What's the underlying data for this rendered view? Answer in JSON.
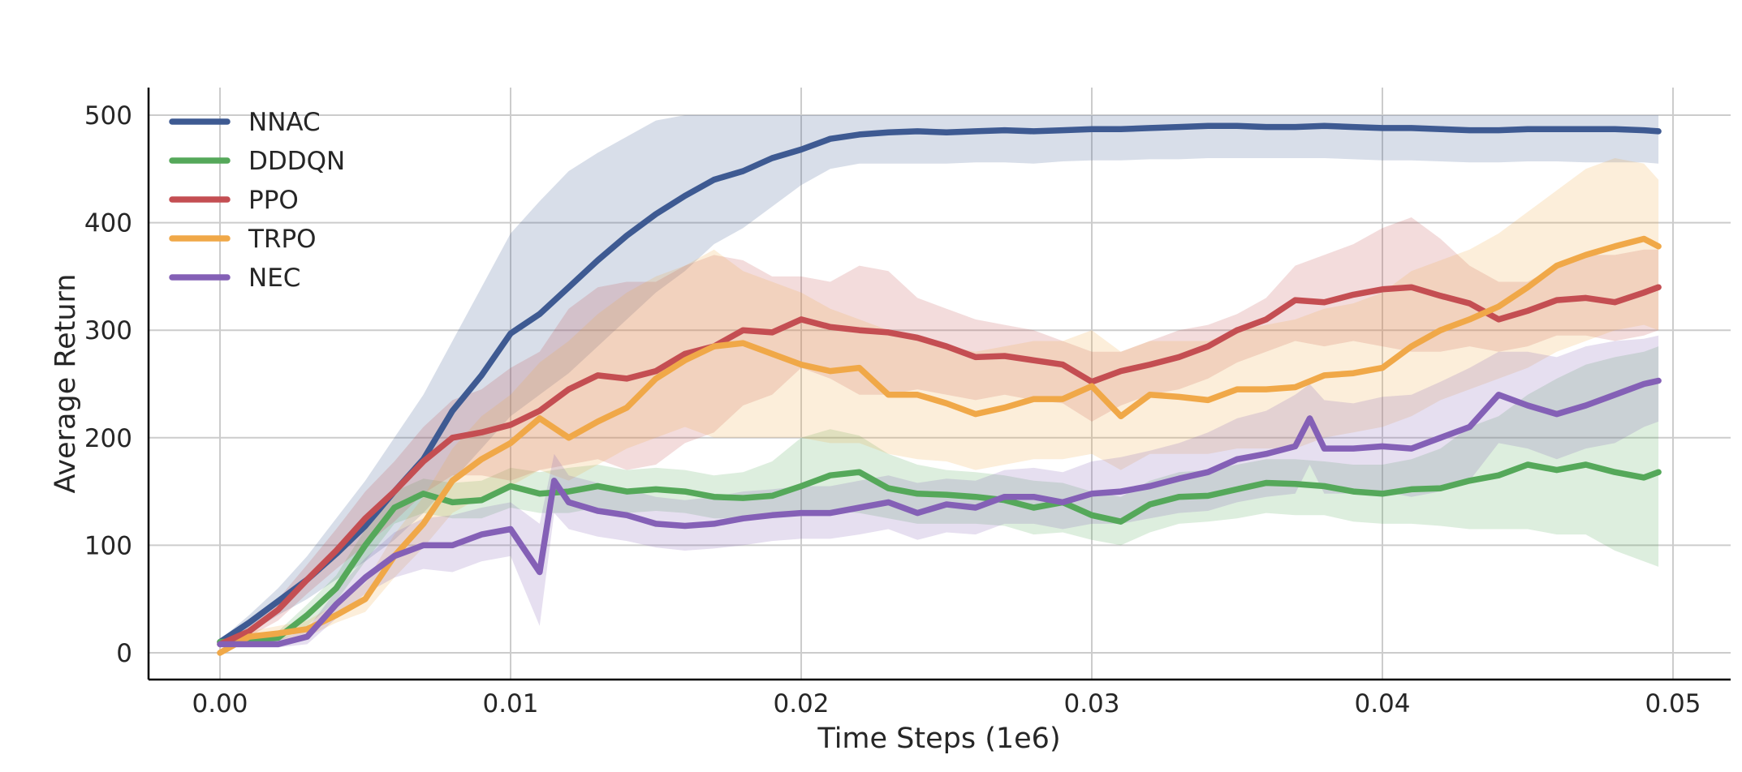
{
  "chart_data": {
    "type": "line",
    "title": "",
    "xlabel": "Time Steps (1e6)",
    "ylabel": "Average Return",
    "xlim": [
      -0.0025,
      0.0522
    ],
    "ylim": [
      -25,
      530
    ],
    "x_ticks": [
      0.0,
      0.01,
      0.02,
      0.03,
      0.04,
      0.05
    ],
    "x_tick_labels": [
      "0.00",
      "0.01",
      "0.02",
      "0.03",
      "0.04",
      "0.05"
    ],
    "y_ticks": [
      0,
      100,
      200,
      300,
      400,
      500
    ],
    "y_tick_labels": [
      "0",
      "100",
      "200",
      "300",
      "400",
      "500"
    ],
    "grid": true,
    "legend_position": "top-left",
    "series": [
      {
        "name": "NNAC",
        "color": "#3e5a92",
        "x": [
          0,
          0.001,
          0.002,
          0.003,
          0.004,
          0.005,
          0.006,
          0.007,
          0.008,
          0.009,
          0.01,
          0.011,
          0.012,
          0.013,
          0.014,
          0.015,
          0.016,
          0.017,
          0.018,
          0.019,
          0.02,
          0.021,
          0.022,
          0.023,
          0.024,
          0.025,
          0.026,
          0.027,
          0.028,
          0.029,
          0.03,
          0.031,
          0.032,
          0.033,
          0.034,
          0.035,
          0.036,
          0.037,
          0.038,
          0.039,
          0.04,
          0.041,
          0.042,
          0.043,
          0.044,
          0.045,
          0.046,
          0.047,
          0.048,
          0.049,
          0.0495
        ],
        "y": [
          10,
          28,
          48,
          68,
          92,
          118,
          150,
          180,
          225,
          258,
          297,
          315,
          340,
          365,
          388,
          408,
          425,
          440,
          448,
          460,
          468,
          478,
          482,
          484,
          485,
          484,
          485,
          486,
          485,
          486,
          487,
          487,
          488,
          489,
          490,
          490,
          489,
          489,
          490,
          489,
          488,
          488,
          487,
          486,
          486,
          487,
          487,
          487,
          487,
          486,
          485
        ],
        "upper": [
          12,
          35,
          60,
          90,
          125,
          160,
          200,
          240,
          290,
          340,
          390,
          420,
          448,
          465,
          480,
          495,
          500,
          500,
          500,
          500,
          500,
          500,
          500,
          500,
          500,
          500,
          500,
          500,
          500,
          500,
          500,
          500,
          500,
          500,
          500,
          500,
          500,
          500,
          500,
          500,
          500,
          500,
          500,
          500,
          500,
          500,
          500,
          500,
          500,
          500,
          500
        ],
        "lower": [
          5,
          18,
          35,
          50,
          68,
          85,
          105,
          130,
          160,
          190,
          220,
          240,
          260,
          285,
          310,
          335,
          355,
          380,
          395,
          415,
          435,
          450,
          455,
          455,
          455,
          455,
          456,
          456,
          455,
          457,
          458,
          458,
          459,
          459,
          460,
          460,
          460,
          460,
          460,
          459,
          458,
          458,
          457,
          456,
          456,
          457,
          457,
          456,
          456,
          456,
          455
        ]
      },
      {
        "name": "DDDQN",
        "color": "#55a85a",
        "x": [
          0,
          0.001,
          0.002,
          0.003,
          0.004,
          0.005,
          0.006,
          0.007,
          0.008,
          0.009,
          0.01,
          0.011,
          0.012,
          0.013,
          0.014,
          0.015,
          0.016,
          0.017,
          0.018,
          0.019,
          0.02,
          0.021,
          0.022,
          0.023,
          0.024,
          0.025,
          0.026,
          0.027,
          0.028,
          0.029,
          0.03,
          0.031,
          0.032,
          0.033,
          0.034,
          0.035,
          0.036,
          0.037,
          0.038,
          0.039,
          0.04,
          0.041,
          0.042,
          0.043,
          0.044,
          0.045,
          0.046,
          0.047,
          0.048,
          0.049,
          0.0495
        ],
        "y": [
          10,
          12,
          14,
          35,
          60,
          100,
          135,
          148,
          140,
          142,
          155,
          148,
          150,
          155,
          150,
          152,
          150,
          145,
          144,
          146,
          155,
          165,
          168,
          153,
          148,
          147,
          145,
          142,
          135,
          140,
          128,
          122,
          138,
          145,
          146,
          152,
          158,
          157,
          155,
          150,
          148,
          152,
          153,
          160,
          165,
          175,
          170,
          175,
          168,
          163,
          168
        ],
        "upper": [
          12,
          16,
          20,
          45,
          72,
          115,
          150,
          162,
          158,
          160,
          172,
          168,
          172,
          175,
          170,
          172,
          170,
          165,
          168,
          178,
          200,
          208,
          202,
          185,
          175,
          170,
          168,
          165,
          160,
          158,
          150,
          145,
          160,
          168,
          170,
          175,
          180,
          180,
          178,
          175,
          175,
          180,
          190,
          210,
          220,
          240,
          255,
          268,
          275,
          280,
          285
        ],
        "lower": [
          5,
          8,
          10,
          25,
          48,
          85,
          120,
          130,
          125,
          125,
          135,
          130,
          130,
          135,
          130,
          132,
          130,
          125,
          125,
          128,
          130,
          132,
          130,
          125,
          120,
          120,
          120,
          118,
          110,
          112,
          105,
          100,
          112,
          120,
          122,
          125,
          130,
          128,
          128,
          122,
          120,
          120,
          118,
          115,
          115,
          115,
          110,
          110,
          95,
          85,
          80
        ]
      },
      {
        "name": "PPO",
        "color": "#c44e52",
        "x": [
          0,
          0.001,
          0.002,
          0.003,
          0.004,
          0.005,
          0.006,
          0.007,
          0.008,
          0.009,
          0.01,
          0.011,
          0.012,
          0.013,
          0.014,
          0.015,
          0.016,
          0.017,
          0.018,
          0.019,
          0.02,
          0.021,
          0.022,
          0.023,
          0.024,
          0.025,
          0.026,
          0.027,
          0.028,
          0.029,
          0.03,
          0.031,
          0.032,
          0.033,
          0.034,
          0.035,
          0.036,
          0.037,
          0.038,
          0.039,
          0.04,
          0.041,
          0.042,
          0.043,
          0.044,
          0.045,
          0.046,
          0.047,
          0.048,
          0.049,
          0.0495
        ],
        "y": [
          8,
          20,
          40,
          68,
          95,
          125,
          150,
          178,
          200,
          205,
          212,
          225,
          245,
          258,
          255,
          262,
          278,
          285,
          300,
          298,
          310,
          303,
          300,
          298,
          293,
          285,
          275,
          276,
          272,
          268,
          252,
          262,
          268,
          275,
          285,
          300,
          310,
          328,
          326,
          333,
          338,
          340,
          332,
          325,
          310,
          318,
          328,
          330,
          326,
          335,
          340
        ],
        "upper": [
          10,
          25,
          50,
          82,
          115,
          150,
          178,
          210,
          235,
          245,
          265,
          280,
          320,
          340,
          345,
          345,
          360,
          370,
          365,
          350,
          350,
          345,
          360,
          355,
          330,
          320,
          310,
          305,
          300,
          290,
          280,
          280,
          290,
          300,
          305,
          315,
          330,
          360,
          370,
          380,
          395,
          405,
          385,
          360,
          345,
          345,
          360,
          370,
          370,
          375,
          375
        ],
        "lower": [
          5,
          15,
          30,
          55,
          78,
          100,
          122,
          148,
          165,
          165,
          160,
          170,
          175,
          180,
          170,
          175,
          195,
          205,
          230,
          240,
          265,
          255,
          240,
          240,
          245,
          240,
          235,
          240,
          235,
          232,
          215,
          230,
          240,
          245,
          255,
          270,
          280,
          290,
          285,
          290,
          285,
          280,
          280,
          285,
          280,
          285,
          295,
          295,
          290,
          295,
          300
        ]
      },
      {
        "name": "TRPO",
        "color": "#f0a848",
        "x": [
          0,
          0.001,
          0.002,
          0.003,
          0.004,
          0.005,
          0.006,
          0.007,
          0.008,
          0.009,
          0.01,
          0.011,
          0.012,
          0.013,
          0.014,
          0.015,
          0.016,
          0.017,
          0.018,
          0.019,
          0.02,
          0.021,
          0.022,
          0.023,
          0.024,
          0.025,
          0.026,
          0.027,
          0.028,
          0.029,
          0.03,
          0.031,
          0.032,
          0.033,
          0.034,
          0.035,
          0.036,
          0.037,
          0.038,
          0.039,
          0.04,
          0.041,
          0.042,
          0.043,
          0.044,
          0.045,
          0.046,
          0.047,
          0.048,
          0.049,
          0.0495
        ],
        "y": [
          0,
          15,
          18,
          22,
          35,
          50,
          90,
          120,
          160,
          180,
          195,
          218,
          200,
          215,
          228,
          255,
          272,
          285,
          288,
          278,
          268,
          262,
          265,
          240,
          240,
          232,
          222,
          228,
          236,
          236,
          248,
          220,
          240,
          238,
          235,
          245,
          245,
          247,
          258,
          260,
          265,
          285,
          300,
          310,
          322,
          340,
          360,
          370,
          378,
          385,
          378
        ],
        "upper": [
          2,
          20,
          25,
          30,
          45,
          65,
          110,
          145,
          190,
          220,
          240,
          270,
          290,
          315,
          335,
          350,
          360,
          375,
          355,
          345,
          335,
          320,
          310,
          300,
          290,
          285,
          280,
          285,
          290,
          290,
          300,
          280,
          290,
          290,
          290,
          300,
          305,
          310,
          320,
          325,
          335,
          355,
          365,
          375,
          390,
          410,
          430,
          450,
          460,
          455,
          440
        ],
        "lower": [
          0,
          10,
          12,
          15,
          28,
          38,
          70,
          98,
          130,
          145,
          155,
          170,
          160,
          175,
          190,
          200,
          210,
          200,
          200,
          200,
          200,
          195,
          195,
          185,
          180,
          178,
          170,
          175,
          180,
          180,
          185,
          170,
          185,
          185,
          185,
          190,
          190,
          190,
          200,
          205,
          210,
          220,
          235,
          245,
          255,
          265,
          280,
          290,
          300,
          305,
          300
        ]
      },
      {
        "name": "NEC",
        "color": "#8460b6",
        "x": [
          0,
          0.001,
          0.002,
          0.003,
          0.004,
          0.005,
          0.006,
          0.007,
          0.008,
          0.009,
          0.01,
          0.011,
          0.0115,
          0.012,
          0.013,
          0.014,
          0.015,
          0.016,
          0.017,
          0.018,
          0.019,
          0.02,
          0.021,
          0.022,
          0.023,
          0.024,
          0.025,
          0.026,
          0.027,
          0.028,
          0.029,
          0.03,
          0.031,
          0.032,
          0.033,
          0.034,
          0.035,
          0.036,
          0.037,
          0.0375,
          0.038,
          0.039,
          0.04,
          0.041,
          0.042,
          0.043,
          0.044,
          0.045,
          0.046,
          0.047,
          0.048,
          0.049,
          0.0495
        ],
        "y": [
          8,
          8,
          8,
          15,
          45,
          70,
          90,
          100,
          100,
          110,
          115,
          75,
          160,
          140,
          132,
          128,
          120,
          118,
          120,
          125,
          128,
          130,
          130,
          135,
          140,
          130,
          138,
          135,
          145,
          145,
          140,
          148,
          150,
          155,
          162,
          168,
          180,
          185,
          192,
          218,
          190,
          190,
          192,
          190,
          200,
          210,
          240,
          230,
          222,
          230,
          240,
          250,
          253
        ],
        "upper": [
          10,
          10,
          12,
          22,
          58,
          88,
          112,
          125,
          128,
          135,
          140,
          120,
          185,
          165,
          158,
          152,
          145,
          142,
          145,
          150,
          152,
          155,
          155,
          160,
          165,
          158,
          162,
          160,
          170,
          172,
          168,
          178,
          182,
          188,
          195,
          205,
          218,
          225,
          240,
          250,
          235,
          232,
          238,
          240,
          252,
          265,
          280,
          280,
          275,
          285,
          290,
          292,
          295
        ],
        "lower": [
          5,
          5,
          5,
          8,
          32,
          55,
          70,
          78,
          75,
          85,
          90,
          25,
          130,
          115,
          108,
          104,
          98,
          95,
          97,
          100,
          104,
          106,
          106,
          110,
          115,
          105,
          112,
          110,
          120,
          120,
          115,
          120,
          120,
          125,
          130,
          132,
          140,
          145,
          148,
          175,
          148,
          148,
          150,
          145,
          150,
          160,
          195,
          190,
          180,
          190,
          195,
          210,
          215
        ]
      }
    ]
  }
}
